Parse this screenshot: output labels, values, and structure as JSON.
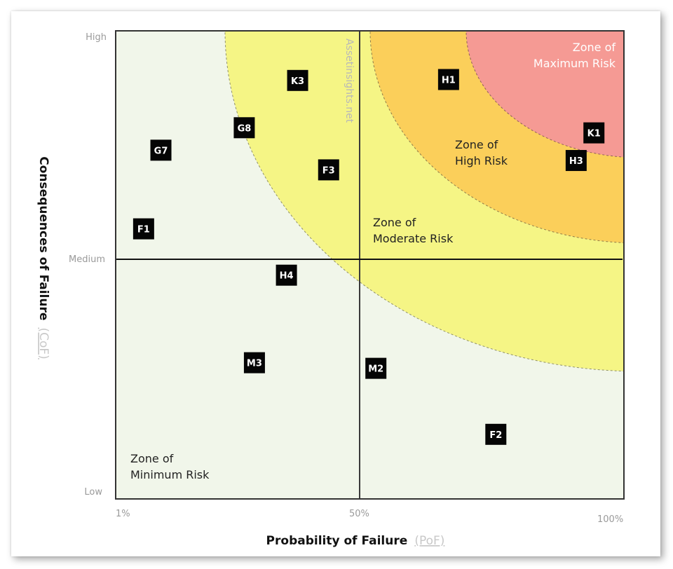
{
  "chart_data": {
    "type": "scatter",
    "title": "",
    "xlabel": "Probability of Failure",
    "xlabel_abbr": "(PoF)",
    "ylabel": "Consequences of Failure",
    "ylabel_abbr": "(CoF)",
    "xlim": [
      0,
      100
    ],
    "ylim": [
      0,
      100
    ],
    "x_ticks": [
      {
        "value": 0,
        "label": "1%"
      },
      {
        "value": 50,
        "label": "50%"
      },
      {
        "value": 100,
        "label": "100%"
      }
    ],
    "y_ticks": [
      {
        "value": 100,
        "label": "High"
      },
      {
        "value": 50,
        "label": "Medium"
      },
      {
        "value": 0,
        "label": "Low"
      }
    ],
    "watermark": "Assetinsights.net",
    "zones": [
      {
        "name": "minimum",
        "lines": [
          "Zone of",
          "Minimum Risk"
        ],
        "color": "#f1f6ea"
      },
      {
        "name": "moderate",
        "lines": [
          "Zone of",
          "Moderate Risk"
        ],
        "color": "#f5f585"
      },
      {
        "name": "high",
        "lines": [
          "Zone of",
          "High Risk"
        ],
        "color": "#fbcf5a"
      },
      {
        "name": "maximum",
        "lines": [
          "Zone of",
          "Maximum Risk"
        ],
        "color": "#f59a94"
      }
    ],
    "points": [
      {
        "label": "K3",
        "x": 35.8,
        "y": 89.4
      },
      {
        "label": "H1",
        "x": 65.5,
        "y": 89.6
      },
      {
        "label": "G8",
        "x": 25.3,
        "y": 79.3
      },
      {
        "label": "K1",
        "x": 94.1,
        "y": 78.2
      },
      {
        "label": "G7",
        "x": 8.9,
        "y": 74.5
      },
      {
        "label": "H3",
        "x": 90.6,
        "y": 72.3
      },
      {
        "label": "F3",
        "x": 41.9,
        "y": 70.3
      },
      {
        "label": "F1",
        "x": 5.5,
        "y": 57.7
      },
      {
        "label": "H4",
        "x": 33.6,
        "y": 47.8
      },
      {
        "label": "M3",
        "x": 27.3,
        "y": 29.1
      },
      {
        "label": "M2",
        "x": 51.2,
        "y": 27.9
      },
      {
        "label": "F2",
        "x": 74.8,
        "y": 13.8
      }
    ]
  }
}
